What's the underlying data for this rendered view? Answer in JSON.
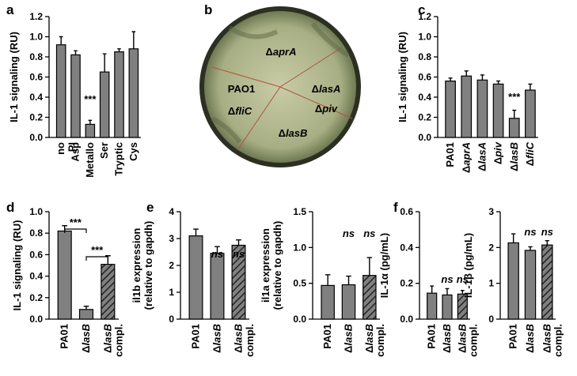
{
  "chart_data": [
    {
      "type": "bar",
      "panel": "a",
      "ylabel": [
        "IL-1 signaling (RU)"
      ],
      "categories": [
        "no PI",
        "Asp",
        "Metallo",
        "Ser",
        "Tryptic",
        "Cys"
      ],
      "values": [
        0.92,
        0.82,
        0.13,
        0.65,
        0.85,
        0.88
      ],
      "errors": [
        0.08,
        0.04,
        0.04,
        0.18,
        0.03,
        0.17
      ],
      "color": "#808080",
      "hatched": [
        false,
        false,
        false,
        false,
        false,
        false
      ],
      "ylim": [
        0,
        1.2
      ],
      "yticks": [
        {
          "value": 0,
          "label": "0.0"
        },
        0.2,
        0.4,
        0.6,
        0.8,
        {
          "value": 1,
          "label": "1.0"
        },
        1.2
      ],
      "annotations": [
        "***"
      ]
    },
    {
      "type": "bar",
      "panel": "c",
      "ylabel": [
        "IL-1 signaling (RU)"
      ],
      "categories": [
        "PA01",
        "ΔaprA",
        "ΔlasA",
        "Δpiv",
        "ΔlasB",
        "ΔfliC"
      ],
      "values": [
        0.56,
        0.61,
        0.57,
        0.53,
        0.19,
        0.47
      ],
      "errors": [
        0.03,
        0.05,
        0.05,
        0.03,
        0.08,
        0.06
      ],
      "color": "#808080",
      "hatched": [
        false,
        false,
        false,
        false,
        false,
        false
      ],
      "ylim": [
        0,
        1.2
      ],
      "yticks": [
        {
          "value": 0,
          "label": "0.0"
        },
        0.2,
        0.4,
        0.6,
        0.8,
        {
          "value": 1,
          "label": "1.0"
        },
        1.2
      ],
      "annotations": [
        "***"
      ]
    },
    {
      "type": "bar",
      "panel": "d",
      "ylabel": [
        "IL-1 signaling (RU)"
      ],
      "categories": [
        "PA01",
        "ΔlasB",
        "ΔlasB compl."
      ],
      "values": [
        0.82,
        0.09,
        0.51
      ],
      "errors": [
        0.05,
        0.03,
        0.08
      ],
      "color": "#808080",
      "hatched": [
        false,
        false,
        true
      ],
      "ylim": [
        0,
        1
      ],
      "yticks": [
        {
          "value": 0,
          "label": "0.0"
        },
        0.2,
        0.4,
        0.6,
        0.8,
        {
          "value": 1,
          "label": "1.0"
        }
      ],
      "annotations": [
        "***",
        "***"
      ]
    },
    {
      "type": "bar",
      "panel": "e",
      "ylabel": [
        "il1b expression",
        "(relative to gapdh)"
      ],
      "categories": [
        "PA01",
        "ΔlasB",
        "ΔlasB compl."
      ],
      "values": [
        3.1,
        2.45,
        2.75
      ],
      "errors": [
        0.25,
        0.25,
        0.2
      ],
      "color": "#808080",
      "hatched": [
        false,
        false,
        true
      ],
      "ylim": [
        0,
        4
      ],
      "yticks": [
        0,
        1,
        2,
        3,
        4
      ],
      "annotations": [
        "ns",
        "ns"
      ]
    },
    {
      "type": "bar",
      "ylabel": [
        "il1a expression",
        "(relative to gapdh)"
      ],
      "categories": [
        "PA01",
        "ΔlasB",
        "ΔlasB compl."
      ],
      "values": [
        0.47,
        0.48,
        0.61
      ],
      "errors": [
        0.15,
        0.12,
        0.25
      ],
      "color": "#808080",
      "hatched": [
        false,
        false,
        true
      ],
      "ylim": [
        0,
        1.5
      ],
      "yticks": [
        {
          "value": 0,
          "label": "0.0"
        },
        0.5,
        {
          "value": 1,
          "label": "1.0"
        },
        1.5
      ],
      "annotations": [
        "ns",
        "ns"
      ]
    },
    {
      "type": "bar",
      "panel": "f",
      "ylabel": [
        "IL-1α (pg/mL)"
      ],
      "categories": [
        "PA01",
        "ΔlasB",
        "ΔlasB compl."
      ],
      "values": [
        0.145,
        0.135,
        0.14
      ],
      "errors": [
        0.04,
        0.035,
        0.02
      ],
      "color": "#808080",
      "hatched": [
        false,
        false,
        true
      ],
      "ylim": [
        0,
        0.6
      ],
      "yticks": [
        {
          "value": 0,
          "label": "0.0"
        },
        0.2,
        0.4,
        0.6
      ],
      "annotations": [
        "ns",
        "ns"
      ]
    },
    {
      "type": "bar",
      "ylabel": [
        "IL-1β (pg/mL)"
      ],
      "categories": [
        "PA01",
        "ΔlasB",
        "ΔlasB compl."
      ],
      "values": [
        2.13,
        1.92,
        2.07
      ],
      "errors": [
        0.25,
        0.1,
        0.12
      ],
      "color": "#808080",
      "hatched": [
        false,
        false,
        true
      ],
      "ylim": [
        0,
        3
      ],
      "yticks": [
        0,
        1,
        2,
        3
      ],
      "annotations": [
        "ns",
        "ns"
      ]
    }
  ],
  "plate": {
    "panel": "b",
    "labels": [
      "ΔaprA",
      "PAO1",
      "ΔlasA",
      "ΔfliC",
      "Δpiv",
      "ΔlasB"
    ]
  }
}
